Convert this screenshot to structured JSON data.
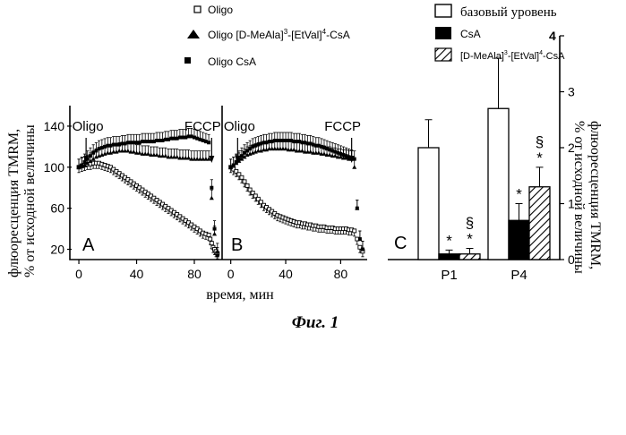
{
  "figure": {
    "caption": "Фиг. 1",
    "legend_left": [
      {
        "marker": "open-square",
        "label": "Oligo"
      },
      {
        "marker": "filled-triangle",
        "label_prefix": "Oligo  [D-MeAla]",
        "sup1": "3",
        "mid": "-[EtVal]",
        "sup2": "4",
        "suffix": "-CsA"
      },
      {
        "marker": "filled-square",
        "label": "Oligo  CsA"
      }
    ],
    "legend_right": [
      {
        "fill": "open",
        "label": "базовый уровень"
      },
      {
        "fill": "black",
        "label": "CsA"
      },
      {
        "fill": "hatched",
        "label_prefix": "[D-MeAla]",
        "sup1": "3",
        "mid": "-[EtVal]",
        "sup2": "4",
        "suffix": "-CsA"
      }
    ],
    "colors": {
      "ink": "#000000",
      "background": "#ffffff"
    }
  },
  "chart_data": [
    {
      "id": "A",
      "type": "scatter",
      "panel_label": "A",
      "ylabel": "флюоресценция TMRM,\n% от исходной величины",
      "xlabel": "время, мин",
      "xlim": [
        -5,
        98
      ],
      "ylim": [
        10,
        160
      ],
      "xticks": [
        0,
        40,
        80
      ],
      "yticks": [
        20,
        60,
        100,
        140
      ],
      "annotations": [
        {
          "text": "Oligo",
          "x": 5
        },
        {
          "text": "FCCP",
          "x": 92
        }
      ],
      "series": [
        {
          "name": "Oligo",
          "marker": "open-square",
          "x": [
            0,
            2,
            4,
            6,
            8,
            10,
            12,
            14,
            16,
            18,
            20,
            22,
            24,
            26,
            28,
            30,
            32,
            34,
            36,
            38,
            40,
            42,
            44,
            46,
            48,
            50,
            52,
            54,
            56,
            58,
            60,
            62,
            64,
            66,
            68,
            70,
            72,
            74,
            76,
            78,
            80,
            82,
            84,
            86,
            88,
            90,
            91,
            92,
            93,
            94,
            95,
            96
          ],
          "y": [
            100,
            101,
            102,
            103,
            103,
            104,
            104,
            104,
            103,
            102,
            101,
            100,
            98,
            96,
            94,
            92,
            90,
            88,
            86,
            84,
            82,
            80,
            78,
            76,
            74,
            72,
            70,
            68,
            66,
            64,
            62,
            60,
            58,
            56,
            54,
            52,
            50,
            48,
            46,
            44,
            42,
            40,
            38,
            36,
            35,
            34,
            30,
            26,
            22,
            20,
            18,
            16
          ]
        },
        {
          "name": "Oligo [D-MeAla]3-[EtVal]4-CsA",
          "marker": "filled-triangle",
          "x": [
            0,
            2,
            4,
            6,
            8,
            10,
            12,
            14,
            16,
            18,
            20,
            22,
            24,
            26,
            28,
            30,
            32,
            34,
            36,
            38,
            40,
            42,
            44,
            46,
            48,
            50,
            52,
            54,
            56,
            58,
            60,
            62,
            64,
            66,
            68,
            70,
            72,
            74,
            76,
            78,
            80,
            82,
            84,
            86,
            88,
            90,
            92,
            94,
            96
          ],
          "y": [
            100,
            101,
            102,
            104,
            106,
            108,
            110,
            111,
            112,
            113,
            114,
            114,
            115,
            115,
            116,
            116,
            116,
            116,
            115,
            115,
            114,
            114,
            113,
            113,
            113,
            112,
            112,
            112,
            111,
            111,
            111,
            110,
            110,
            110,
            110,
            109,
            109,
            109,
            109,
            108,
            108,
            108,
            108,
            108,
            108,
            108,
            70,
            35,
            18
          ]
        },
        {
          "name": "Oligo CsA",
          "marker": "filled-square",
          "x": [
            0,
            2,
            4,
            6,
            8,
            10,
            12,
            14,
            16,
            18,
            20,
            22,
            24,
            26,
            28,
            30,
            32,
            34,
            36,
            38,
            40,
            42,
            44,
            46,
            48,
            50,
            52,
            54,
            56,
            58,
            60,
            62,
            64,
            66,
            68,
            70,
            72,
            74,
            76,
            78,
            80,
            82,
            84,
            86,
            88,
            90,
            92,
            94,
            96
          ],
          "y": [
            100,
            102,
            105,
            108,
            111,
            114,
            116,
            118,
            119,
            120,
            121,
            121,
            122,
            122,
            122,
            123,
            123,
            124,
            124,
            124,
            124,
            124,
            125,
            125,
            125,
            125,
            125,
            126,
            126,
            126,
            127,
            127,
            128,
            128,
            128,
            129,
            129,
            129,
            130,
            130,
            129,
            128,
            127,
            126,
            125,
            124,
            80,
            40,
            14
          ]
        }
      ]
    },
    {
      "id": "B",
      "type": "scatter",
      "panel_label": "B",
      "xlim": [
        -5,
        98
      ],
      "ylim": [
        10,
        160
      ],
      "xticks": [
        0,
        40,
        80
      ],
      "annotations": [
        {
          "text": "Oligo",
          "x": 5
        },
        {
          "text": "FCCP",
          "x": 88
        }
      ],
      "series": [
        {
          "name": "Oligo",
          "marker": "open-square",
          "x": [
            0,
            2,
            4,
            6,
            8,
            10,
            12,
            14,
            16,
            18,
            20,
            22,
            24,
            26,
            28,
            30,
            32,
            34,
            36,
            38,
            40,
            42,
            44,
            46,
            48,
            50,
            52,
            54,
            56,
            58,
            60,
            62,
            64,
            66,
            68,
            70,
            72,
            74,
            76,
            78,
            80,
            82,
            84,
            86,
            88,
            90,
            92,
            94,
            96
          ],
          "y": [
            100,
            98,
            96,
            93,
            90,
            86,
            82,
            78,
            75,
            72,
            69,
            66,
            63,
            61,
            59,
            57,
            55,
            53,
            52,
            51,
            50,
            49,
            48,
            47,
            46,
            46,
            45,
            45,
            44,
            44,
            43,
            43,
            42,
            42,
            42,
            41,
            41,
            41,
            40,
            40,
            40,
            40,
            40,
            39,
            39,
            38,
            30,
            22,
            18
          ]
        },
        {
          "name": "Oligo [D-MeAla]3-[EtVal]4-CsA",
          "marker": "filled-triangle",
          "x": [
            0,
            2,
            4,
            6,
            8,
            10,
            12,
            14,
            16,
            18,
            20,
            22,
            24,
            26,
            28,
            30,
            32,
            34,
            36,
            38,
            40,
            42,
            44,
            46,
            48,
            50,
            52,
            54,
            56,
            58,
            60,
            62,
            64,
            66,
            68,
            70,
            72,
            74,
            76,
            78,
            80,
            82,
            84,
            86,
            88,
            90,
            92,
            94,
            96
          ],
          "y": [
            100,
            102,
            104,
            106,
            108,
            110,
            112,
            113,
            114,
            115,
            116,
            116,
            117,
            117,
            118,
            118,
            118,
            118,
            118,
            118,
            118,
            117,
            117,
            117,
            116,
            116,
            116,
            115,
            115,
            115,
            114,
            114,
            114,
            113,
            113,
            112,
            112,
            111,
            111,
            110,
            110,
            109,
            109,
            108,
            108,
            100,
            60,
            30,
            20
          ]
        },
        {
          "name": "Oligo CsA",
          "marker": "filled-square",
          "x": [
            0,
            2,
            4,
            6,
            8,
            10,
            12,
            14,
            16,
            18,
            20,
            22,
            24,
            26,
            28,
            30,
            32,
            34,
            36,
            38,
            40,
            42,
            44,
            46,
            48,
            50,
            52,
            54,
            56,
            58,
            60,
            62,
            64,
            66,
            68,
            70,
            72,
            74,
            76,
            78,
            80,
            82,
            84,
            86,
            88,
            90,
            92,
            94,
            96
          ],
          "y": [
            100,
            102,
            105,
            108,
            111,
            114,
            116,
            118,
            120,
            121,
            122,
            123,
            124,
            124,
            125,
            125,
            126,
            126,
            126,
            126,
            126,
            126,
            126,
            125,
            125,
            125,
            124,
            124,
            123,
            123,
            122,
            121,
            121,
            120,
            119,
            118,
            117,
            116,
            115,
            114,
            113,
            112,
            111,
            110,
            109,
            108,
            60,
            30,
            20
          ]
        }
      ]
    },
    {
      "id": "C",
      "type": "bar",
      "panel_label": "C",
      "ylabel": "флюоресценция TMRM,\n% от исходной величины",
      "categories": [
        "P1",
        "P4"
      ],
      "ylim": [
        0,
        4
      ],
      "yticks": [
        0,
        1,
        2,
        3,
        4
      ],
      "series": [
        {
          "name": "базовый уровень",
          "fill": "open",
          "values": [
            2.0,
            2.7
          ],
          "err": [
            0.5,
            0.9
          ],
          "marks": [
            "",
            ""
          ]
        },
        {
          "name": "CsA",
          "fill": "black",
          "values": [
            0.1,
            0.7
          ],
          "err": [
            0.07,
            0.3
          ],
          "marks": [
            "*",
            "*"
          ]
        },
        {
          "name": "[D-MeAla]3-[EtVal]4-CsA",
          "fill": "hatched",
          "values": [
            0.1,
            1.3
          ],
          "err": [
            0.1,
            0.35
          ],
          "marks": [
            "§\n*",
            "§\n*"
          ]
        }
      ]
    }
  ]
}
